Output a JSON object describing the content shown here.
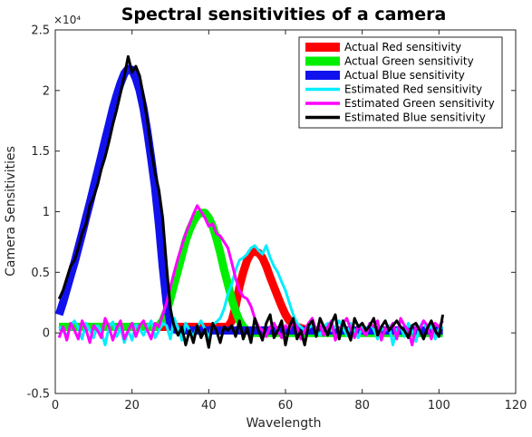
{
  "chart_data": {
    "type": "line",
    "title": "Spectral sensitivities of a camera",
    "xlabel": "Wavelength",
    "ylabel": "Camera Sensitivities",
    "exponent_label": "×10⁴",
    "xlim": [
      0,
      120
    ],
    "ylim": [
      -0.5,
      2.5
    ],
    "y_scale_factor": 10000,
    "xticks": [
      "0",
      "20",
      "40",
      "60",
      "80",
      "100",
      "120"
    ],
    "yticks": [
      "-0.5",
      "0",
      "0.5",
      "1",
      "1.5",
      "2",
      "2.5"
    ],
    "grid": false,
    "legend_position": "top-right",
    "x": [
      1,
      2,
      3,
      4,
      5,
      6,
      7,
      8,
      9,
      10,
      11,
      12,
      13,
      14,
      15,
      16,
      17,
      18,
      19,
      20,
      21,
      22,
      23,
      24,
      25,
      26,
      27,
      28,
      29,
      30,
      31,
      32,
      33,
      34,
      35,
      36,
      37,
      38,
      39,
      40,
      41,
      42,
      43,
      44,
      45,
      46,
      47,
      48,
      49,
      50,
      51,
      52,
      53,
      54,
      55,
      56,
      57,
      58,
      59,
      60,
      61,
      62,
      63,
      64,
      65,
      66,
      67,
      68,
      69,
      70,
      71,
      72,
      73,
      74,
      75,
      76,
      77,
      78,
      79,
      80,
      81,
      82,
      83,
      84,
      85,
      86,
      87,
      88,
      89,
      90,
      91,
      92,
      93,
      94,
      95,
      96,
      97,
      98,
      99,
      100,
      101
    ],
    "series": [
      {
        "name": "Actual Red sensitivity",
        "color": "#ff0000",
        "width": 9,
        "values": [
          0.05,
          0.05,
          0.05,
          0.05,
          0.05,
          0.05,
          0.05,
          0.05,
          0.05,
          0.05,
          0.05,
          0.05,
          0.05,
          0.05,
          0.05,
          0.05,
          0.05,
          0.05,
          0.05,
          0.05,
          0.05,
          0.05,
          0.05,
          0.05,
          0.05,
          0.05,
          0.05,
          0.05,
          0.05,
          0.05,
          0.05,
          0.05,
          0.05,
          0.05,
          0.05,
          0.05,
          0.05,
          0.05,
          0.05,
          0.05,
          0.05,
          0.05,
          0.05,
          0.05,
          0.05,
          0.1,
          0.22,
          0.38,
          0.5,
          0.6,
          0.66,
          0.67,
          0.66,
          0.62,
          0.55,
          0.46,
          0.38,
          0.3,
          0.22,
          0.15,
          0.1,
          0.07,
          0.05,
          0.04,
          0.03,
          0.03,
          0.02,
          0.02,
          0.02,
          0.02,
          0.02,
          0.02,
          0.02,
          0.02,
          0.02,
          0.02,
          0.02,
          0.02,
          0.02,
          0.02,
          0.02,
          0.02,
          0.02,
          0.02,
          0.02,
          0.02,
          0.02,
          0.02,
          0.02,
          0.02,
          0.02,
          0.02,
          0.02,
          0.02,
          0.02,
          0.02,
          0.02,
          0.02,
          0.02,
          0.02,
          0.02
        ]
      },
      {
        "name": "Actual Green sensitivity",
        "color": "#00ee00",
        "width": 9,
        "values": [
          0.05,
          0.05,
          0.05,
          0.05,
          0.05,
          0.05,
          0.05,
          0.05,
          0.05,
          0.05,
          0.05,
          0.05,
          0.05,
          0.05,
          0.05,
          0.05,
          0.05,
          0.05,
          0.05,
          0.05,
          0.05,
          0.05,
          0.05,
          0.05,
          0.05,
          0.05,
          0.06,
          0.1,
          0.18,
          0.28,
          0.4,
          0.52,
          0.64,
          0.76,
          0.85,
          0.92,
          0.97,
          0.99,
          0.99,
          0.95,
          0.88,
          0.78,
          0.66,
          0.52,
          0.4,
          0.28,
          0.18,
          0.1,
          0.05,
          0.02,
          0.01,
          0,
          0,
          0,
          0,
          0,
          0,
          0,
          0,
          0,
          0,
          0,
          0,
          0,
          0,
          0,
          0,
          0,
          0,
          0,
          0,
          0,
          0,
          0,
          0,
          0,
          0,
          0,
          0,
          0,
          0,
          0,
          0,
          0,
          0,
          0,
          0,
          0,
          0,
          0,
          0,
          0,
          0,
          0,
          0,
          0,
          0,
          0,
          0,
          0,
          0
        ]
      },
      {
        "name": "Actual Blue sensitivity",
        "color": "#1111ee",
        "width": 9,
        "values": [
          0.15,
          0.25,
          0.36,
          0.47,
          0.58,
          0.7,
          0.82,
          0.95,
          1.07,
          1.2,
          1.33,
          1.46,
          1.59,
          1.72,
          1.85,
          1.96,
          2.06,
          2.14,
          2.18,
          2.17,
          2.1,
          2.0,
          1.85,
          1.66,
          1.44,
          1.2,
          0.9,
          0.55,
          0.25,
          0.08,
          0.03,
          0.02,
          0.02,
          0.02,
          0.02,
          0.02,
          0.02,
          0.02,
          0.02,
          0.02,
          0.02,
          0.02,
          0.02,
          0.02,
          0.02,
          0.02,
          0.02,
          0.02,
          0.02,
          0.02,
          0.02,
          0.02,
          0.02,
          0.02,
          0.02,
          0.02,
          0.02,
          0.02,
          0.02,
          0.02,
          0.02,
          0.02,
          0.02,
          0.02,
          0.02,
          0.02,
          0.02,
          0.02,
          0.02,
          0.02,
          0.02,
          0.02,
          0.02,
          0.02,
          0.02,
          0.02,
          0.02,
          0.02,
          0.02,
          0.02,
          0.02,
          0.02,
          0.02,
          0.02,
          0.02,
          0.02,
          0.02,
          0.02,
          0.02,
          0.02,
          0.02,
          0.02,
          0.02,
          0.02,
          0.02,
          0.02,
          0.02,
          0.02,
          0.02,
          0.02,
          0.02
        ]
      },
      {
        "name": "Estimated Red sensitivity",
        "color": "#00eeff",
        "width": 3,
        "values": [
          0.05,
          0.02,
          -0.03,
          0.06,
          0.1,
          0.04,
          -0.05,
          0.08,
          0.02,
          -0.04,
          0.06,
          0.01,
          -0.1,
          0.05,
          0.09,
          -0.03,
          0.04,
          -0.08,
          0.02,
          -0.06,
          0.07,
          0.03,
          -0.02,
          0.05,
          0.1,
          -0.04,
          0.02,
          0.08,
          0.06,
          -0.05,
          0.12,
          0.04,
          -0.06,
          0.08,
          0.02,
          -0.03,
          0.05,
          0.1,
          0.03,
          -0.04,
          0.06,
          0.09,
          0.12,
          0.2,
          0.32,
          0.4,
          0.52,
          0.6,
          0.62,
          0.65,
          0.7,
          0.72,
          0.68,
          0.65,
          0.72,
          0.62,
          0.55,
          0.5,
          0.42,
          0.35,
          0.25,
          0.15,
          0.08,
          0.05,
          0.02,
          0.04,
          0.06,
          0.03,
          -0.02,
          0.05,
          0.08,
          0.02,
          0.05,
          0.1,
          0.04,
          -0.02,
          0.08,
          0.02,
          -0.04,
          0.05,
          0.02,
          0.08,
          0.03,
          -0.05,
          0.04,
          0.02,
          0.06,
          -0.1,
          0.03,
          0.05,
          -0.03,
          0.08,
          0.02,
          -0.07,
          0.05,
          0.1,
          0.02,
          0.06,
          -0.05,
          0.03,
          0.05
        ]
      },
      {
        "name": "Estimated Green sensitivity",
        "color": "#ff00ff",
        "width": 3,
        "values": [
          -0.04,
          0.05,
          -0.06,
          0.08,
          0.02,
          -0.05,
          0.1,
          0.03,
          -0.08,
          0.06,
          0.02,
          -0.04,
          0.12,
          0.05,
          -0.06,
          0.04,
          0.1,
          -0.05,
          0.02,
          0.08,
          -0.03,
          0.06,
          0.1,
          0.02,
          -0.05,
          0.08,
          0.05,
          0.15,
          0.25,
          0.38,
          0.5,
          0.62,
          0.72,
          0.82,
          0.9,
          0.98,
          1.05,
          1.0,
          0.95,
          0.88,
          0.9,
          0.82,
          0.8,
          0.75,
          0.7,
          0.58,
          0.45,
          0.35,
          0.3,
          0.28,
          0.22,
          0.12,
          0.05,
          0.02,
          -0.03,
          0.05,
          0.08,
          0.02,
          -0.04,
          0.06,
          0.03,
          0.1,
          0.05,
          -0.05,
          0.02,
          0.08,
          0.12,
          0.02,
          0.06,
          -0.02,
          0.05,
          0.1,
          -0.06,
          0.02,
          0.08,
          0.12,
          0.03,
          -0.04,
          0.06,
          0.02,
          -0.02,
          0.08,
          0.05,
          0.1,
          -0.06,
          0.04,
          0.02,
          0.08,
          -0.05,
          0.12,
          0.06,
          0.02,
          -0.1,
          0.05,
          0.03,
          0.1,
          0.06,
          -0.05,
          0.08,
          0.05,
          0.1
        ]
      },
      {
        "name": "Estimated Blue sensitivity",
        "color": "#000000",
        "width": 3,
        "values": [
          0.28,
          0.35,
          0.45,
          0.55,
          0.6,
          0.7,
          0.82,
          0.9,
          1.05,
          1.12,
          1.22,
          1.35,
          1.45,
          1.58,
          1.72,
          1.84,
          1.98,
          2.12,
          2.28,
          2.15,
          2.2,
          2.12,
          1.95,
          1.75,
          1.52,
          1.32,
          1.18,
          0.95,
          0.55,
          0.2,
          0.05,
          -0.02,
          0.05,
          -0.1,
          0.02,
          -0.08,
          0.06,
          -0.04,
          0.03,
          -0.12,
          0.08,
          0.02,
          -0.08,
          0.05,
          0.02,
          0.06,
          -0.03,
          0.1,
          -0.05,
          0.04,
          -0.08,
          0.12,
          0.02,
          -0.06,
          0.08,
          0.15,
          -0.04,
          0.02,
          0.1,
          -0.1,
          0.05,
          0.12,
          -0.05,
          0.02,
          -0.1,
          0.06,
          0.1,
          -0.03,
          0.12,
          0.05,
          -0.02,
          0.08,
          0.15,
          -0.05,
          0.1,
          0.02,
          -0.06,
          0.12,
          0.05,
          0.08,
          0.02,
          0.06,
          0.12,
          -0.02,
          0.05,
          0.1,
          0.02,
          0.06,
          0.1,
          0.05,
          0.02,
          -0.04,
          0.06,
          0.08,
          0.02,
          -0.05,
          0.04,
          0.1,
          0.02,
          -0.03,
          0.15
        ]
      }
    ]
  }
}
